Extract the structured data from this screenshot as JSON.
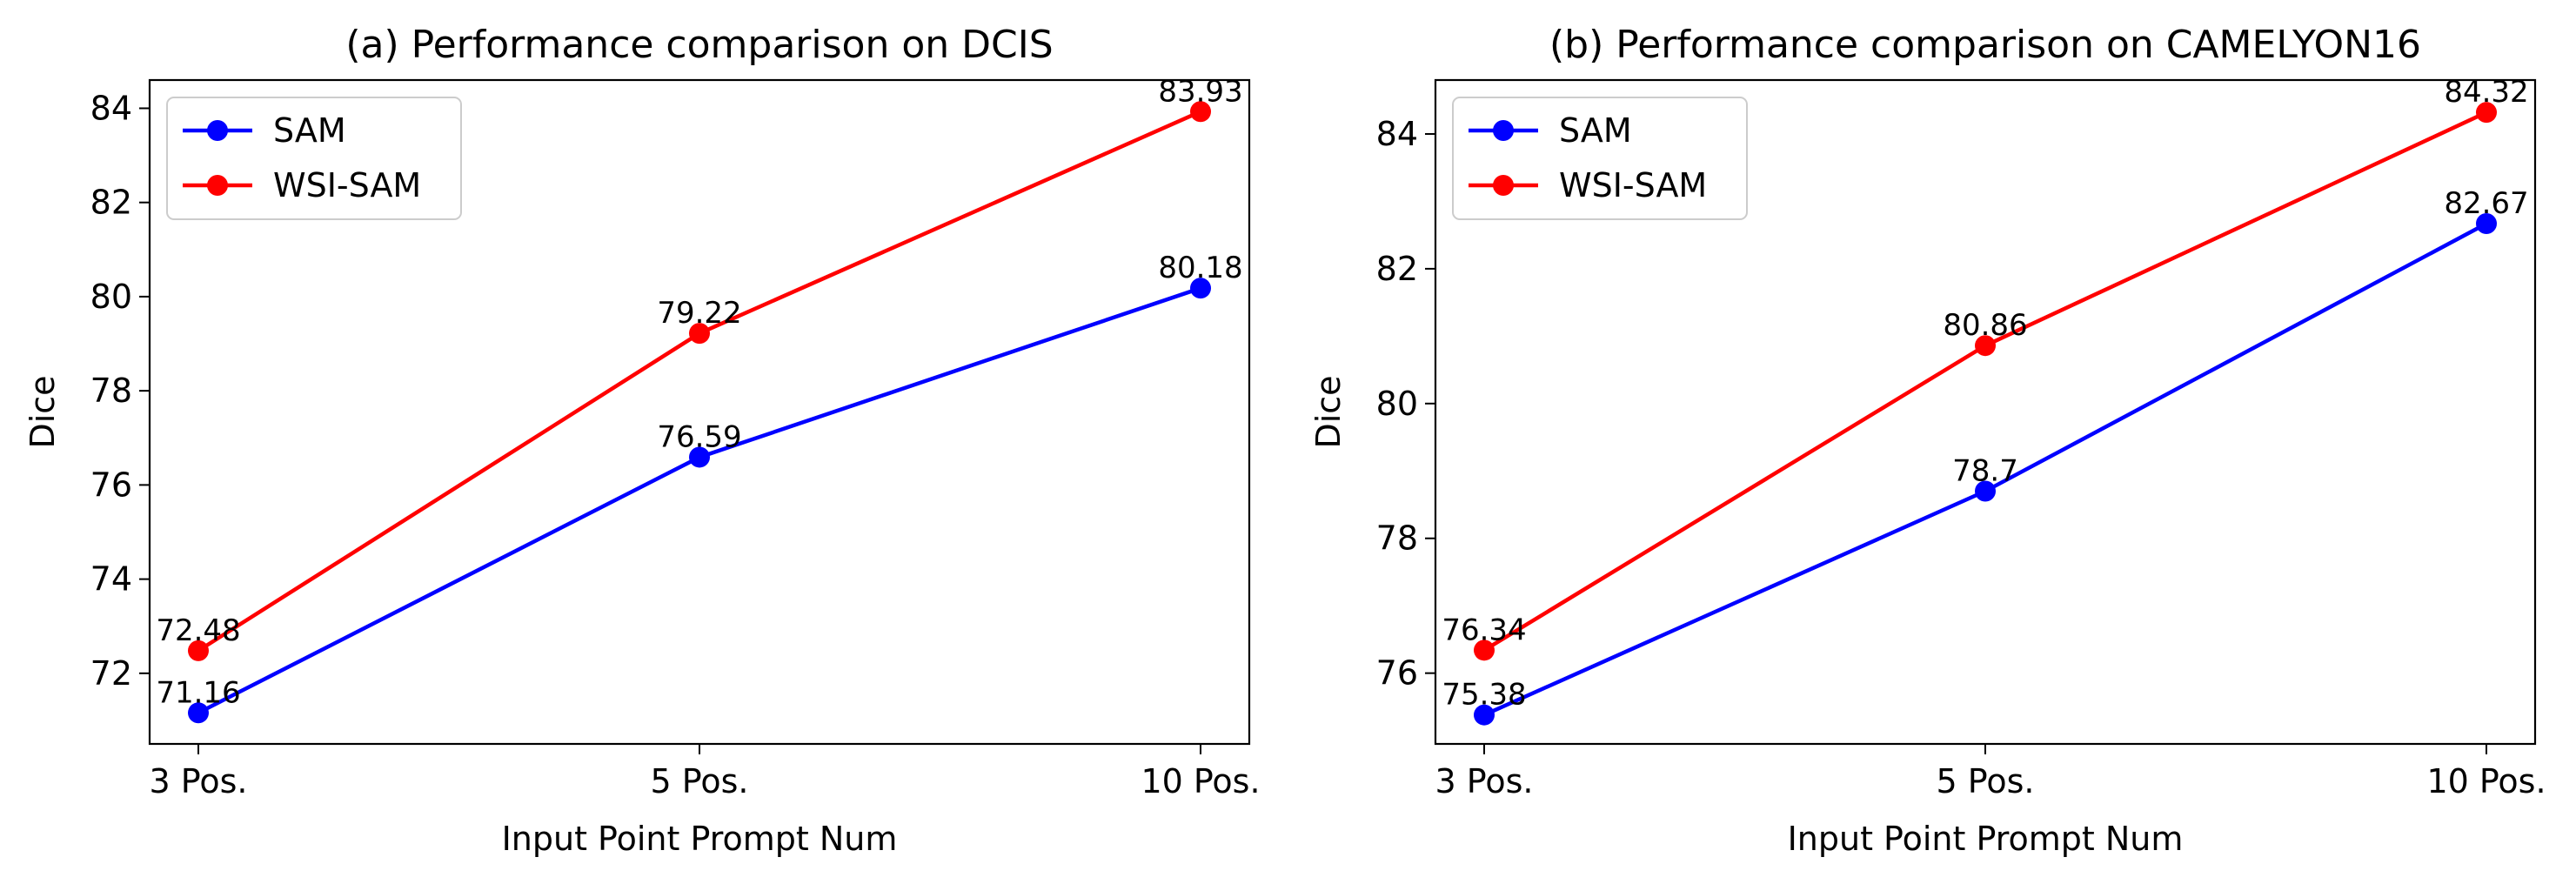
{
  "chart_data": [
    {
      "type": "line",
      "title": "(a) Performance comparison on DCIS",
      "xlabel": "Input Point Prompt Num",
      "ylabel": "Dice",
      "categories": [
        "3 Pos.",
        "5 Pos.",
        "10 Pos."
      ],
      "ylim": [
        70.5,
        84.6
      ],
      "yticks": [
        72,
        74,
        76,
        78,
        80,
        82,
        84
      ],
      "grid": false,
      "legend": "top-left",
      "series": [
        {
          "name": "SAM",
          "color": "#0000ff",
          "values": [
            71.16,
            76.59,
            80.18
          ],
          "labels": [
            "71.16",
            "76.59",
            "80.18"
          ]
        },
        {
          "name": "WSI-SAM",
          "color": "#ff0000",
          "values": [
            72.48,
            79.22,
            83.93
          ],
          "labels": [
            "72.48",
            "79.22",
            "83.93"
          ]
        }
      ]
    },
    {
      "type": "line",
      "title": "(b) Performance comparison on CAMELYON16",
      "xlabel": "Input Point Prompt Num",
      "ylabel": "Dice",
      "categories": [
        "3 Pos.",
        "5 Pos.",
        "10 Pos."
      ],
      "ylim": [
        74.95,
        84.8
      ],
      "yticks": [
        76,
        78,
        80,
        82,
        84
      ],
      "grid": false,
      "legend": "top-left",
      "series": [
        {
          "name": "SAM",
          "color": "#0000ff",
          "values": [
            75.38,
            78.7,
            82.67
          ],
          "labels": [
            "75.38",
            "78.7",
            "82.67"
          ]
        },
        {
          "name": "WSI-SAM",
          "color": "#ff0000",
          "values": [
            76.34,
            80.86,
            84.32
          ],
          "labels": [
            "76.34",
            "80.86",
            "84.32"
          ]
        }
      ]
    }
  ]
}
